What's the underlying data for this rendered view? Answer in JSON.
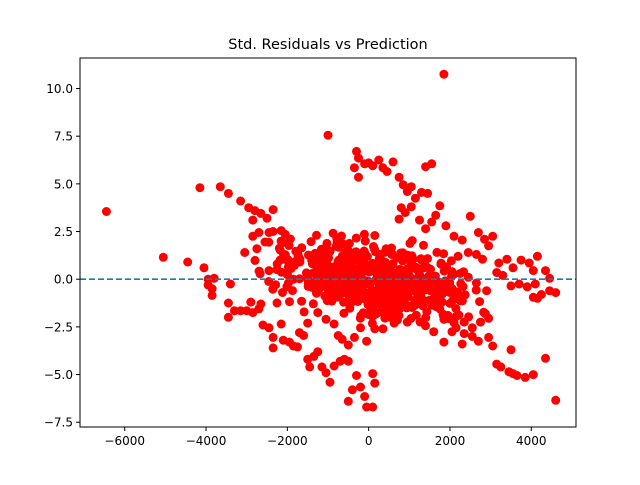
{
  "chart_data": {
    "type": "scatter",
    "title": "Std. Residuals vs Prediction",
    "xlabel": "",
    "ylabel": "",
    "xlim": [
      -7100,
      5100
    ],
    "ylim": [
      -7.75,
      11.6
    ],
    "xticks": [
      -6000,
      -4000,
      -2000,
      0,
      2000,
      4000
    ],
    "xtick_labels": [
      "−6000",
      "−4000",
      "−2000",
      "0",
      "2000",
      "4000"
    ],
    "yticks": [
      -7.5,
      -5.0,
      -2.5,
      0.0,
      2.5,
      5.0,
      7.5,
      10.0
    ],
    "ytick_labels": [
      "−7.5",
      "−5.0",
      "−2.5",
      "0.0",
      "2.5",
      "5.0",
      "7.5",
      "10.0"
    ],
    "reference_line": {
      "y": 0,
      "style": "dashed",
      "color": "#1f77b4"
    },
    "marker_color": "#ff0000",
    "grid": false,
    "points": [
      [
        -6450,
        3.55
      ],
      [
        -5050,
        1.15
      ],
      [
        -4450,
        0.9
      ],
      [
        -4150,
        4.8
      ],
      [
        -4050,
        0.6
      ],
      [
        -3950,
        0.0
      ],
      [
        -3850,
        -0.5
      ],
      [
        -3850,
        -0.85
      ],
      [
        -3950,
        -0.3
      ],
      [
        -3800,
        0.05
      ],
      [
        -3650,
        4.85
      ],
      [
        -3450,
        4.5
      ],
      [
        -3150,
        4.1
      ],
      [
        -2950,
        3.75
      ],
      [
        -2800,
        3.6
      ],
      [
        -2650,
        3.45
      ],
      [
        -2500,
        3.2
      ],
      [
        -2350,
        3.65
      ],
      [
        -2450,
        2.45
      ],
      [
        -2700,
        2.45
      ],
      [
        -2850,
        3.1
      ],
      [
        -2850,
        2.25
      ],
      [
        -2550,
        1.95
      ],
      [
        -2350,
        2.5
      ],
      [
        -2150,
        2.55
      ],
      [
        -2050,
        2.35
      ],
      [
        -3050,
        1.4
      ],
      [
        -2750,
        1.6
      ],
      [
        -2450,
        0.45
      ],
      [
        -2250,
        0.8
      ],
      [
        -3400,
        -0.25
      ],
      [
        -3450,
        -1.25
      ],
      [
        -3450,
        -2.0
      ],
      [
        -3300,
        -1.65
      ],
      [
        -3150,
        -1.65
      ],
      [
        -3000,
        -1.65
      ],
      [
        -2900,
        -1.2
      ],
      [
        -2850,
        -1.75
      ],
      [
        -2650,
        -1.3
      ],
      [
        -2700,
        -1.55
      ],
      [
        -2600,
        -2.4
      ],
      [
        -2450,
        -2.55
      ],
      [
        -2350,
        -3.05
      ],
      [
        -2350,
        -3.6
      ],
      [
        -2150,
        -2.35
      ],
      [
        -2100,
        -3.2
      ],
      [
        -1950,
        -3.3
      ],
      [
        -1850,
        -3.5
      ],
      [
        -1750,
        -3.55
      ],
      [
        -1600,
        -2.95
      ],
      [
        -1500,
        -4.2
      ],
      [
        -1450,
        -4.6
      ],
      [
        -1350,
        -4.05
      ],
      [
        -1250,
        -3.8
      ],
      [
        -1150,
        -4.6
      ],
      [
        -1050,
        -4.9
      ],
      [
        -950,
        -5.4
      ],
      [
        -850,
        -4.55
      ],
      [
        -700,
        -4.3
      ],
      [
        -600,
        -4.2
      ],
      [
        -500,
        -4.3
      ],
      [
        -400,
        -5.8
      ],
      [
        -300,
        -5.05
      ],
      [
        -200,
        -5.65
      ],
      [
        -100,
        -6.15
      ],
      [
        -500,
        -6.4
      ],
      [
        -50,
        -6.7
      ],
      [
        100,
        -6.7
      ],
      [
        100,
        -4.95
      ],
      [
        150,
        -5.45
      ],
      [
        -1700,
        -2.8
      ],
      [
        -1500,
        -2.3
      ],
      [
        -1250,
        -1.75
      ],
      [
        -1050,
        -2.1
      ],
      [
        -850,
        -2.35
      ],
      [
        -750,
        -2.95
      ],
      [
        -650,
        -3.15
      ],
      [
        -500,
        -3.45
      ],
      [
        -350,
        -3.05
      ],
      [
        -200,
        -2.55
      ],
      [
        -50,
        -3.25
      ],
      [
        150,
        -2.6
      ],
      [
        350,
        -2.6
      ],
      [
        600,
        -1.85
      ],
      [
        950,
        -2.25
      ],
      [
        1150,
        -1.35
      ],
      [
        1350,
        -1.1
      ],
      [
        1550,
        -1.35
      ],
      [
        1750,
        -1.55
      ],
      [
        1950,
        -1.9
      ],
      [
        2150,
        -1.95
      ],
      [
        2350,
        -2.25
      ],
      [
        2550,
        -2.55
      ],
      [
        2750,
        -2.25
      ],
      [
        2950,
        -2.05
      ],
      [
        1850,
        -2.1
      ],
      [
        2150,
        -2.55
      ],
      [
        2350,
        -2.85
      ],
      [
        2550,
        -3.0
      ],
      [
        2700,
        -3.25
      ],
      [
        2950,
        -3.05
      ],
      [
        3150,
        -4.45
      ],
      [
        3250,
        -4.6
      ],
      [
        3450,
        -4.85
      ],
      [
        3550,
        -4.95
      ],
      [
        3650,
        -5.05
      ],
      [
        3850,
        -5.15
      ],
      [
        4050,
        -5.0
      ],
      [
        4350,
        -4.15
      ],
      [
        4600,
        -6.35
      ],
      [
        3500,
        -3.7
      ],
      [
        3050,
        -3.5
      ],
      [
        2300,
        -3.4
      ],
      [
        1600,
        -2.75
      ],
      [
        1850,
        -3.3
      ],
      [
        2050,
        -2.75
      ],
      [
        -1000,
        7.55
      ],
      [
        -300,
        6.7
      ],
      [
        -250,
        6.35
      ],
      [
        -350,
        5.85
      ],
      [
        -250,
        5.35
      ],
      [
        -100,
        6.05
      ],
      [
        0,
        6.1
      ],
      [
        100,
        5.95
      ],
      [
        250,
        6.25
      ],
      [
        350,
        5.85
      ],
      [
        450,
        5.65
      ],
      [
        600,
        6.15
      ],
      [
        750,
        5.35
      ],
      [
        850,
        4.95
      ],
      [
        950,
        4.6
      ],
      [
        1050,
        4.85
      ],
      [
        1150,
        4.25
      ],
      [
        1300,
        4.55
      ],
      [
        1450,
        4.5
      ],
      [
        1400,
        5.9
      ],
      [
        1550,
        6.05
      ],
      [
        1850,
        10.75
      ],
      [
        1750,
        3.85
      ],
      [
        1650,
        3.35
      ],
      [
        1900,
        2.8
      ],
      [
        1550,
        3.0
      ],
      [
        1400,
        2.65
      ],
      [
        1250,
        3.1
      ],
      [
        1050,
        3.8
      ],
      [
        900,
        3.5
      ],
      [
        800,
        3.75
      ],
      [
        750,
        3.15
      ],
      [
        2100,
        2.25
      ],
      [
        2300,
        2.05
      ],
      [
        2500,
        3.3
      ],
      [
        2700,
        2.45
      ],
      [
        2850,
        2.1
      ],
      [
        2950,
        1.75
      ],
      [
        3050,
        2.25
      ],
      [
        3200,
        0.85
      ],
      [
        3400,
        1.05
      ],
      [
        3550,
        0.6
      ],
      [
        3750,
        1.0
      ],
      [
        3950,
        0.85
      ],
      [
        4050,
        0.45
      ],
      [
        4150,
        1.2
      ],
      [
        4350,
        0.45
      ],
      [
        4450,
        0.05
      ],
      [
        4250,
        -0.8
      ],
      [
        4100,
        -0.25
      ],
      [
        3900,
        -0.4
      ],
      [
        3700,
        -0.25
      ],
      [
        3500,
        -0.35
      ],
      [
        3300,
        0.2
      ],
      [
        3150,
        0.35
      ],
      [
        2900,
        -0.6
      ],
      [
        2650,
        -0.2
      ],
      [
        2450,
        0.1
      ],
      [
        2250,
        0.3
      ],
      [
        4450,
        -0.6
      ],
      [
        4600,
        -0.7
      ],
      [
        4050,
        -0.95
      ],
      [
        4150,
        -1.0
      ],
      [
        2050,
        0.4
      ],
      [
        2200,
        1.2
      ],
      [
        2450,
        1.4
      ],
      [
        2650,
        1.3
      ],
      [
        2800,
        1.05
      ]
    ]
  }
}
